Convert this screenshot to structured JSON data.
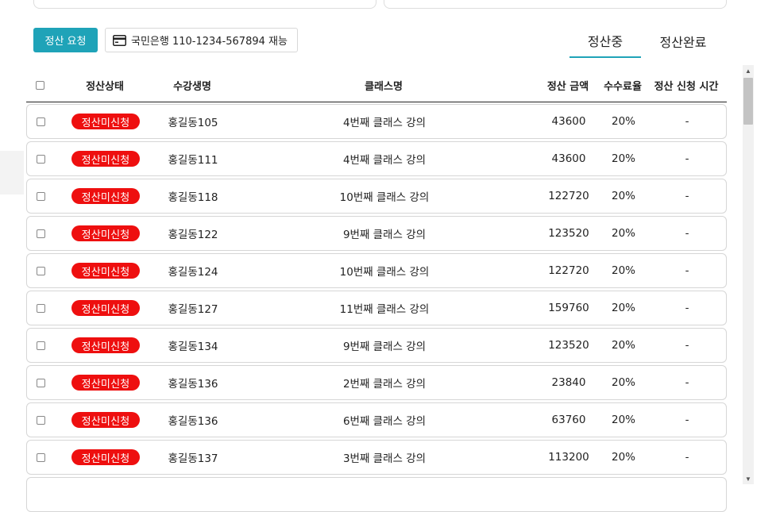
{
  "toolbar": {
    "request_label": "정산 요청",
    "bank_account": "국민은행 110-1234-567894 재능"
  },
  "tabs": [
    {
      "label": "정산중",
      "active": true
    },
    {
      "label": "정산완료",
      "active": false
    }
  ],
  "table": {
    "headers": {
      "status": "정산상태",
      "student": "수강생명",
      "class": "클래스명",
      "amount": "정산 금액",
      "fee": "수수료율",
      "request_time": "정산 신청 시간"
    },
    "rows": [
      {
        "status": "정산미신청",
        "student": "홍길동105",
        "class": "4번째 클래스 강의",
        "amount": "43600",
        "fee": "20%",
        "request_time": "-"
      },
      {
        "status": "정산미신청",
        "student": "홍길동111",
        "class": "4번째 클래스 강의",
        "amount": "43600",
        "fee": "20%",
        "request_time": "-"
      },
      {
        "status": "정산미신청",
        "student": "홍길동118",
        "class": "10번째 클래스 강의",
        "amount": "122720",
        "fee": "20%",
        "request_time": "-"
      },
      {
        "status": "정산미신청",
        "student": "홍길동122",
        "class": "9번째 클래스 강의",
        "amount": "123520",
        "fee": "20%",
        "request_time": "-"
      },
      {
        "status": "정산미신청",
        "student": "홍길동124",
        "class": "10번째 클래스 강의",
        "amount": "122720",
        "fee": "20%",
        "request_time": "-"
      },
      {
        "status": "정산미신청",
        "student": "홍길동127",
        "class": "11번째 클래스 강의",
        "amount": "159760",
        "fee": "20%",
        "request_time": "-"
      },
      {
        "status": "정산미신청",
        "student": "홍길동134",
        "class": "9번째 클래스 강의",
        "amount": "123520",
        "fee": "20%",
        "request_time": "-"
      },
      {
        "status": "정산미신청",
        "student": "홍길동136",
        "class": "2번째 클래스 강의",
        "amount": "23840",
        "fee": "20%",
        "request_time": "-"
      },
      {
        "status": "정산미신청",
        "student": "홍길동136",
        "class": "6번째 클래스 강의",
        "amount": "63760",
        "fee": "20%",
        "request_time": "-"
      },
      {
        "status": "정산미신청",
        "student": "홍길동137",
        "class": "3번째 클래스 강의",
        "amount": "113200",
        "fee": "20%",
        "request_time": "-"
      }
    ]
  },
  "colors": {
    "accent": "#1fa3b8",
    "status_badge": "#ee0f0f"
  },
  "icons": {
    "bank": "credit-card-icon",
    "scroll_up": "triangle-up-icon",
    "scroll_down": "triangle-down-icon"
  }
}
